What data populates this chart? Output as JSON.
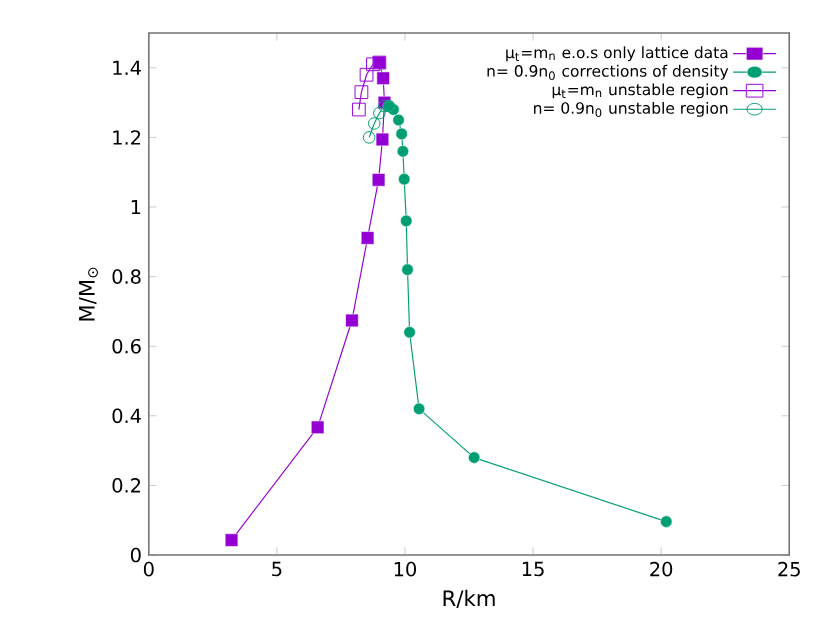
{
  "chart_data": {
    "type": "line",
    "xlabel": "R/km",
    "ylabel": "M/M$_{⊙}$",
    "xlim": [
      0,
      25
    ],
    "ylim": [
      0,
      1.5
    ],
    "xticks": [
      0,
      5,
      10,
      15,
      20,
      25
    ],
    "yticks": [
      0,
      0.2,
      0.4,
      0.6,
      0.8,
      1,
      1.2,
      1.4
    ],
    "grid": false,
    "legend": "top right",
    "series": [
      {
        "name": "μ$_{t}$=m$_{n}$ e.o.s only lattice data",
        "color": "#9400d3",
        "marker": "square",
        "x": [
          3.23,
          6.59,
          7.93,
          8.54,
          8.97,
          9.12,
          9.2,
          9.15,
          9.0
        ],
        "values": [
          0.043,
          0.367,
          0.674,
          0.911,
          1.078,
          1.194,
          1.3,
          1.37,
          1.415
        ]
      },
      {
        "name": "n= 0.9n$_{0}$ corrections of density",
        "color": "#009e73",
        "marker": "circle",
        "x": [
          20.2,
          12.7,
          10.55,
          10.18,
          10.1,
          10.05,
          9.97,
          9.92,
          9.87,
          9.75,
          9.55,
          9.37
        ],
        "values": [
          0.096,
          0.28,
          0.42,
          0.64,
          0.82,
          0.96,
          1.08,
          1.16,
          1.21,
          1.25,
          1.28,
          1.29
        ]
      },
      {
        "name": "μ$_{t}$=m$_{n}$ unstable region",
        "color": "#9400d3",
        "marker": "square",
        "x": [
          9.0,
          8.75,
          8.5,
          8.3,
          8.2
        ],
        "values": [
          1.415,
          1.41,
          1.38,
          1.33,
          1.28
        ]
      },
      {
        "name": "n= 0.9n$_{0}$  unstable region",
        "color": "#009e73",
        "marker": "circle",
        "x": [
          9.37,
          9.2,
          9.0,
          8.8,
          8.6
        ],
        "values": [
          1.29,
          1.29,
          1.27,
          1.24,
          1.2
        ]
      }
    ]
  }
}
